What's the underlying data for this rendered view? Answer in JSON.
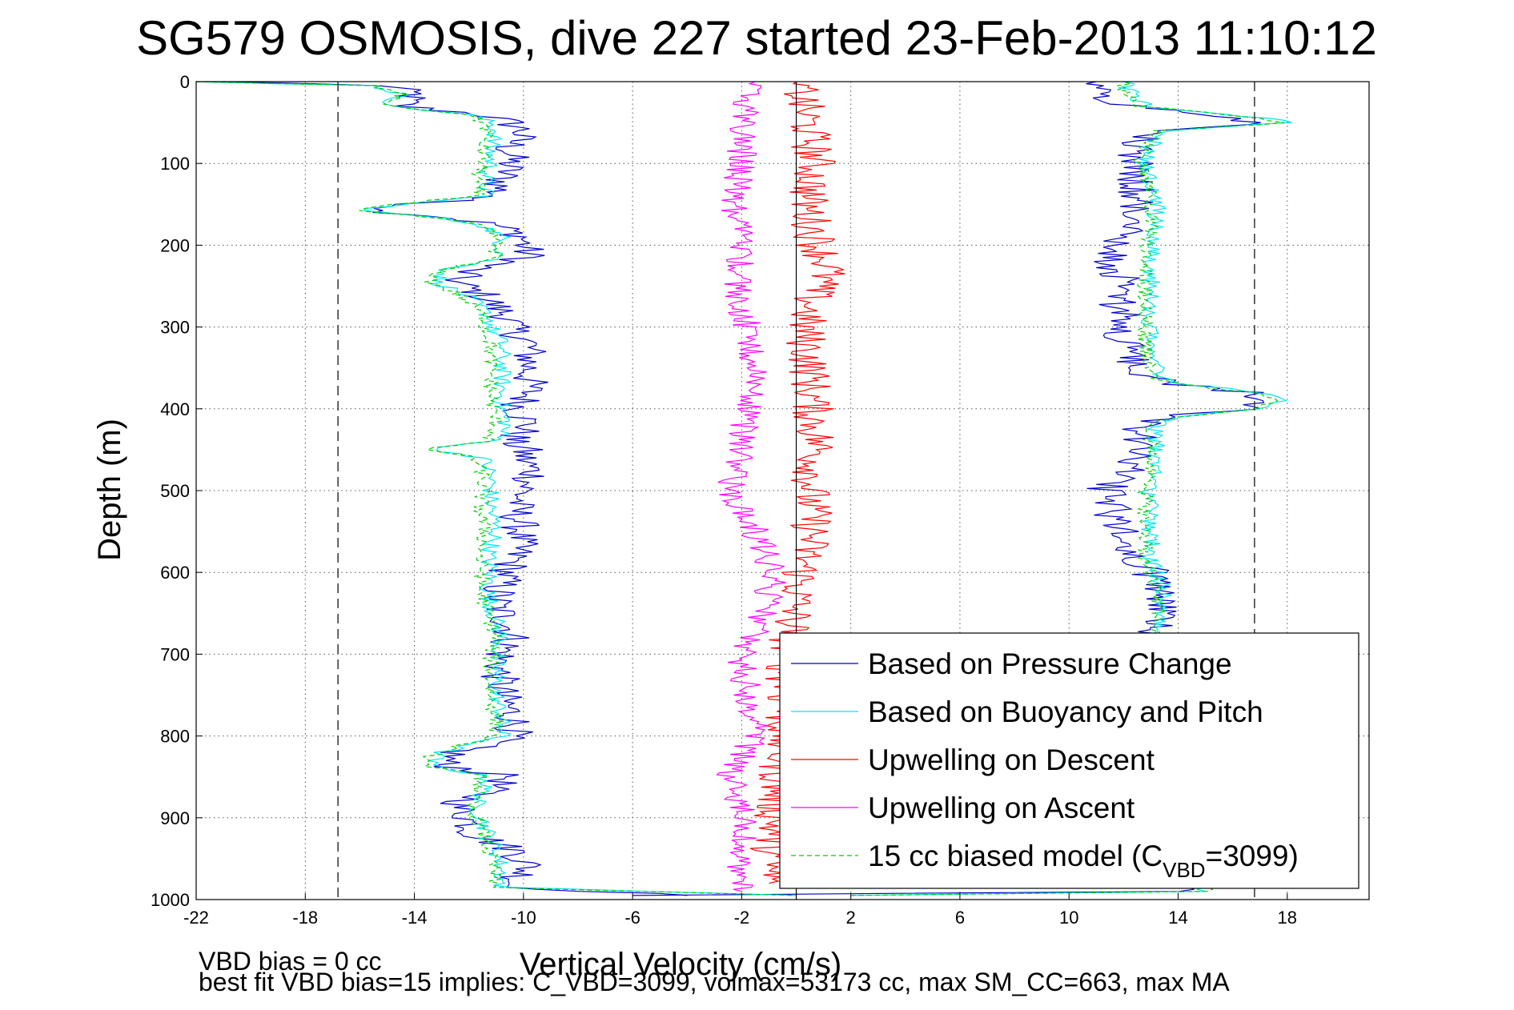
{
  "chart_data": {
    "type": "line",
    "title": "SG579 OSMOSIS, dive 227 started 23-Feb-2013 11:10:12",
    "xlabel": "Vertical Velocity (cm/s)",
    "ylabel": "Depth (m)",
    "xlim": [
      -22,
      21
    ],
    "ylim": [
      0,
      1000
    ],
    "y_reversed": true,
    "grid": true,
    "x_ticks": [
      "-22",
      "-18",
      "-14",
      "-10",
      "-6",
      "-2",
      "2",
      "6",
      "10",
      "14",
      "18"
    ],
    "y_ticks": [
      "0",
      "100",
      "200",
      "300",
      "400",
      "500",
      "600",
      "700",
      "800",
      "900",
      "1000"
    ],
    "reference_lines": {
      "zero_x": 0,
      "dashed_x": [
        -16.8,
        16.8
      ]
    },
    "notes": [
      "VBD bias = 0 cc",
      "best fit VBD bias=15 implies: C_VBD=3099, volmax=53173 cc, max SM_CC=663, max MA"
    ],
    "legend": {
      "position": "bottom-right",
      "entries": [
        {
          "label": "Based on Pressure Change",
          "color": "#0000cc",
          "style": "solid"
        },
        {
          "label": "Based on Buoyancy and Pitch",
          "color": "#00e5ee",
          "style": "solid"
        },
        {
          "label": "Upwelling on Descent",
          "color": "#ff0000",
          "style": "solid"
        },
        {
          "label": "Upwelling on Ascent",
          "color": "#ff00ff",
          "style": "solid"
        },
        {
          "label": "15 cc biased model (C",
          "label_sub": "VBD",
          "label_end": "=3099)",
          "color": "#00cc00",
          "style": "dashed"
        }
      ]
    },
    "series": [
      {
        "name": "Based on Pressure Change",
        "color": "#0000cc",
        "descent": {
          "depth": [
            0,
            5,
            15,
            30,
            40,
            50,
            60,
            80,
            100,
            120,
            140,
            150,
            158,
            165,
            175,
            190,
            200,
            215,
            230,
            245,
            260,
            275,
            290,
            300,
            320,
            350,
            380,
            400,
            420,
            440,
            448,
            460,
            480,
            500,
            520,
            550,
            580,
            600,
            620,
            640,
            660,
            680,
            700,
            720,
            750,
            780,
            800,
            820,
            835,
            850,
            870,
            885,
            900,
            920,
            940,
            960,
            975,
            985,
            995
          ],
          "v": [
            -21,
            -15,
            -14,
            -14.5,
            -11.5,
            -10.5,
            -10,
            -10.5,
            -10.5,
            -10.8,
            -11,
            -14,
            -15.5,
            -13,
            -11,
            -10,
            -10,
            -9.8,
            -12,
            -12.5,
            -11.5,
            -11,
            -10.5,
            -10.5,
            -9.8,
            -9.8,
            -9.8,
            -10.2,
            -9.8,
            -10.5,
            -10,
            -10,
            -9.6,
            -10,
            -10.3,
            -10.1,
            -10.3,
            -10.6,
            -10.9,
            -11,
            -10.6,
            -10.4,
            -10.8,
            -10.9,
            -10.8,
            -10.3,
            -10.4,
            -12.5,
            -13,
            -10.5,
            -11.5,
            -12.5,
            -12,
            -11.8,
            -10.3,
            -9.8,
            -10.2,
            -10.5,
            -4
          ]
        },
        "ascent": {
          "depth": [
            995,
            990,
            960,
            940,
            900,
            850,
            800,
            750,
            700,
            680,
            660,
            640,
            620,
            600,
            580,
            560,
            540,
            520,
            500,
            480,
            460,
            440,
            420,
            410,
            400,
            390,
            380,
            370,
            360,
            340,
            320,
            300,
            280,
            260,
            240,
            220,
            200,
            180,
            160,
            140,
            120,
            100,
            80,
            60,
            50,
            40,
            30,
            20,
            10,
            0
          ],
          "v": [
            -6,
            14,
            13.2,
            13,
            13,
            12.8,
            12.8,
            13,
            13,
            13.2,
            13.3,
            13.5,
            13.2,
            13,
            12.2,
            12,
            11.8,
            11.5,
            11.3,
            12,
            12.3,
            12.5,
            12.5,
            13.5,
            16.8,
            17.2,
            16.5,
            14,
            12.5,
            12.3,
            12,
            11.8,
            12,
            11.5,
            12,
            11.5,
            11.8,
            12.5,
            12.3,
            12.5,
            12.5,
            12.5,
            12.5,
            13,
            17,
            15.5,
            12.5,
            11.5,
            11,
            11
          ]
        }
      },
      {
        "name": "Based on Buoyancy and Pitch",
        "color": "#00e5ee",
        "descent": {
          "depth": [
            0,
            5,
            15,
            30,
            40,
            50,
            60,
            80,
            100,
            120,
            140,
            150,
            158,
            165,
            175,
            190,
            200,
            215,
            230,
            245,
            260,
            275,
            290,
            300,
            320,
            350,
            380,
            400,
            420,
            440,
            448,
            460,
            480,
            500,
            520,
            550,
            580,
            600,
            620,
            640,
            660,
            680,
            700,
            720,
            750,
            780,
            800,
            820,
            835,
            850,
            870,
            885,
            900,
            920,
            940,
            960,
            975,
            985,
            995
          ],
          "v": [
            -22,
            -15.5,
            -14.5,
            -15,
            -12,
            -11.2,
            -11,
            -11.2,
            -11.2,
            -11.4,
            -11.4,
            -14.5,
            -16,
            -13.5,
            -11.5,
            -10.8,
            -10.8,
            -10.8,
            -12.8,
            -13.2,
            -12.2,
            -11.6,
            -11.2,
            -11.2,
            -10.8,
            -10.8,
            -10.8,
            -10.8,
            -10.6,
            -11,
            -13.5,
            -11.5,
            -11.2,
            -11.2,
            -11.2,
            -11,
            -11.3,
            -11.2,
            -11.3,
            -11.2,
            -11,
            -10.8,
            -11,
            -11,
            -11,
            -10.8,
            -10.8,
            -13,
            -13.5,
            -11.3,
            -11.5,
            -11.8,
            -11.5,
            -11.3,
            -11,
            -10.8,
            -10.8,
            -10.8,
            0
          ]
        },
        "ascent": {
          "depth": [
            995,
            990,
            960,
            940,
            900,
            850,
            800,
            750,
            700,
            680,
            660,
            640,
            620,
            600,
            580,
            560,
            540,
            520,
            500,
            480,
            460,
            440,
            420,
            410,
            400,
            390,
            380,
            370,
            360,
            340,
            320,
            300,
            280,
            260,
            240,
            220,
            200,
            180,
            160,
            140,
            120,
            100,
            80,
            60,
            50,
            40,
            30,
            20,
            10,
            0
          ],
          "v": [
            2,
            15,
            13.4,
            13.2,
            13.2,
            13.2,
            13.2,
            13.2,
            13.2,
            13.2,
            13.4,
            13.5,
            13.4,
            13.2,
            13,
            13,
            13,
            13,
            13,
            13.1,
            13.1,
            13.2,
            13.2,
            14,
            17.2,
            17.8,
            17,
            14.2,
            13.2,
            13.1,
            13,
            13,
            13,
            13,
            13,
            13,
            13,
            13.2,
            13.2,
            13.2,
            13,
            12.8,
            13,
            13.5,
            18.2,
            16,
            12.8,
            12.5,
            12.2,
            12
          ]
        }
      },
      {
        "name": "Upwelling on Descent",
        "color": "#ff0000",
        "depth": [
          0,
          20,
          50,
          100,
          150,
          200,
          230,
          260,
          300,
          350,
          400,
          450,
          500,
          550,
          600,
          650,
          700,
          800,
          900,
          980
        ],
        "v": [
          0,
          0.2,
          0.4,
          0.7,
          0.4,
          0.8,
          1.2,
          0.6,
          0.3,
          0.5,
          0.6,
          0.8,
          0.5,
          0.6,
          0.2,
          -0.1,
          -0.3,
          -0.5,
          -0.8,
          -1
        ]
      },
      {
        "name": "Upwelling on Ascent",
        "color": "#ff00ff",
        "depth": [
          990,
          950,
          900,
          850,
          800,
          750,
          700,
          650,
          600,
          550,
          500,
          450,
          400,
          350,
          300,
          250,
          200,
          150,
          100,
          50,
          20,
          0
        ],
        "v": [
          -2,
          -2,
          -1.8,
          -2.5,
          -1.5,
          -1.8,
          -2,
          -1.2,
          -0.8,
          -1.5,
          -2.5,
          -2,
          -1.8,
          -1.5,
          -1.8,
          -2.2,
          -2,
          -2.3,
          -2,
          -2,
          -1.8,
          -1.5
        ]
      },
      {
        "name": "15 cc biased model (CVBD=3099)",
        "color": "#00cc00",
        "descent": {
          "depth": [
            0,
            5,
            15,
            30,
            40,
            50,
            60,
            80,
            100,
            120,
            140,
            150,
            158,
            165,
            175,
            190,
            200,
            215,
            230,
            245,
            260,
            275,
            290,
            300,
            320,
            350,
            380,
            400,
            420,
            440,
            448,
            460,
            480,
            500,
            520,
            550,
            580,
            600,
            620,
            640,
            660,
            680,
            700,
            720,
            750,
            780,
            800,
            820,
            835,
            850,
            870,
            885,
            900,
            920,
            940,
            960,
            975,
            985,
            995
          ],
          "v": [
            -22,
            -15.5,
            -14.5,
            -15,
            -12,
            -11.5,
            -11.3,
            -11.5,
            -11.5,
            -11.7,
            -11.7,
            -14.7,
            -16.2,
            -13.7,
            -11.7,
            -11,
            -11,
            -11,
            -13,
            -13.4,
            -12.4,
            -11.8,
            -11.4,
            -11.4,
            -11.2,
            -11.2,
            -11.2,
            -11.1,
            -11,
            -11.3,
            -13.7,
            -11.8,
            -11.5,
            -11.5,
            -11.6,
            -11.4,
            -11.6,
            -11.5,
            -11.6,
            -11.4,
            -11.2,
            -11,
            -11.2,
            -11.2,
            -11.2,
            -11,
            -11,
            -13.2,
            -13.7,
            -11.5,
            -11.7,
            -12,
            -11.7,
            -11.5,
            -11.3,
            -11.1,
            -11.1,
            -11.1,
            0
          ]
        },
        "ascent": {
          "depth": [
            995,
            990,
            960,
            940,
            900,
            850,
            800,
            750,
            700,
            680,
            660,
            640,
            620,
            600,
            580,
            560,
            540,
            520,
            500,
            480,
            460,
            440,
            420,
            410,
            400,
            390,
            380,
            370,
            360,
            340,
            320,
            300,
            280,
            260,
            240,
            220,
            200,
            180,
            160,
            140,
            120,
            100,
            80,
            60,
            50,
            40,
            30,
            20,
            10,
            0
          ],
          "v": [
            2,
            15.2,
            13.2,
            13,
            13,
            13,
            13,
            13,
            13,
            13,
            13.2,
            13.3,
            13.2,
            13,
            12.8,
            12.8,
            12.8,
            12.8,
            12.8,
            12.9,
            12.9,
            13,
            13,
            13.8,
            17,
            17.6,
            16.8,
            14,
            13,
            12.9,
            12.8,
            12.8,
            12.8,
            12.8,
            12.8,
            12.8,
            12.8,
            13,
            13,
            13,
            12.8,
            12.6,
            12.8,
            13.3,
            18,
            15.8,
            12.6,
            12.3,
            12,
            12
          ]
        }
      }
    ]
  }
}
